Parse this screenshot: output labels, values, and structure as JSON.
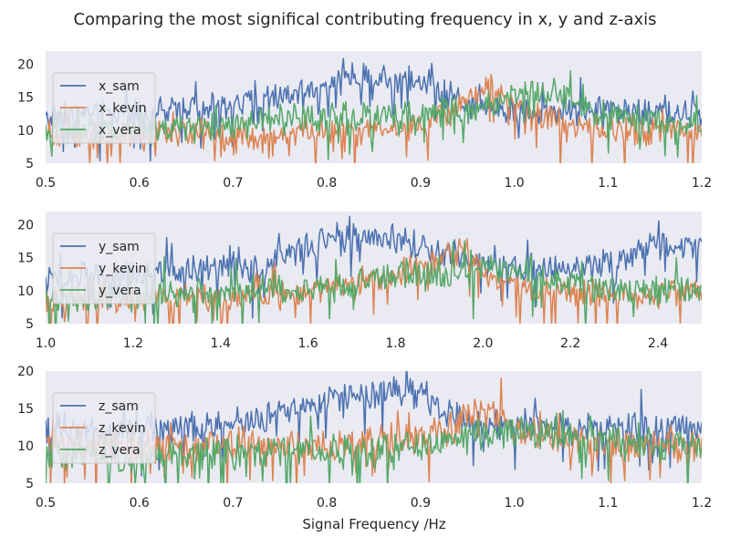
{
  "figure": {
    "title": "Comparing the most significal contributing frequency in x, y and z-axis",
    "xlabel": "Signal Frequency /Hz"
  },
  "colors": {
    "background": "#EAEAF2",
    "series": [
      "#4C72B0",
      "#DD8452",
      "#55A868"
    ],
    "legend_bg": "#EAEAF2",
    "legend_edge": "#CCCCCC"
  },
  "chart_data": [
    {
      "type": "line",
      "xlim": [
        0.5,
        1.2
      ],
      "ylim": [
        5,
        22
      ],
      "xticks": [
        "0.5",
        "0.6",
        "0.7",
        "0.8",
        "0.9",
        "1.0",
        "1.1",
        "1.2"
      ],
      "yticks": [
        "5",
        "10",
        "15",
        "20"
      ],
      "legend_position": "upper-left",
      "grid": false,
      "series": [
        {
          "name": "x_sam",
          "x": [
            0.5,
            0.55,
            0.6,
            0.65,
            0.7,
            0.75,
            0.8,
            0.83,
            0.86,
            0.89,
            0.92,
            0.95,
            1.0,
            1.05,
            1.1,
            1.15,
            1.2
          ],
          "y": [
            12,
            12.5,
            12.5,
            13,
            14,
            15,
            17.5,
            18,
            18,
            18,
            16,
            14,
            13,
            13,
            13,
            12.5,
            12.5
          ]
        },
        {
          "name": "x_kevin",
          "x": [
            0.5,
            0.55,
            0.6,
            0.65,
            0.7,
            0.75,
            0.8,
            0.85,
            0.9,
            0.93,
            0.96,
            0.98,
            1.0,
            1.05,
            1.1,
            1.15,
            1.2
          ],
          "y": [
            9.5,
            9.5,
            9,
            9.5,
            9,
            9.5,
            9.5,
            10,
            11,
            12.5,
            15,
            16.5,
            14,
            11,
            10,
            10,
            10
          ]
        },
        {
          "name": "x_vera",
          "x": [
            0.5,
            0.55,
            0.6,
            0.65,
            0.7,
            0.75,
            0.8,
            0.85,
            0.9,
            0.95,
            0.98,
            1.0,
            1.03,
            1.06,
            1.1,
            1.15,
            1.2
          ],
          "y": [
            9.5,
            10,
            10,
            10,
            11,
            11.5,
            12,
            12.5,
            12.5,
            13,
            14,
            15,
            15.5,
            14.5,
            12,
            11.5,
            11
          ]
        }
      ]
    },
    {
      "type": "line",
      "xlim": [
        1.0,
        2.5
      ],
      "ylim": [
        5,
        22
      ],
      "xticks": [
        "1.0",
        "1.2",
        "1.4",
        "1.6",
        "1.8",
        "2.0",
        "2.2",
        "2.4"
      ],
      "yticks": [
        "5",
        "10",
        "15",
        "20"
      ],
      "legend_position": "upper-left",
      "grid": false,
      "series": [
        {
          "name": "y_sam",
          "x": [
            1.0,
            1.1,
            1.2,
            1.3,
            1.4,
            1.5,
            1.6,
            1.7,
            1.8,
            1.9,
            2.0,
            2.1,
            2.2,
            2.3,
            2.4,
            2.5
          ],
          "y": [
            12,
            12,
            12.5,
            13,
            13.5,
            14,
            17,
            18,
            18,
            15.5,
            14,
            13.5,
            13.5,
            14.5,
            16.5,
            17
          ]
        },
        {
          "name": "y_kevin",
          "x": [
            1.0,
            1.1,
            1.2,
            1.3,
            1.4,
            1.5,
            1.6,
            1.7,
            1.8,
            1.85,
            1.9,
            1.95,
            2.0,
            2.1,
            2.2,
            2.3,
            2.4,
            2.5
          ],
          "y": [
            9,
            8.5,
            9,
            9,
            9,
            9.5,
            10,
            11,
            12.5,
            13.5,
            15,
            16,
            13,
            10,
            9.5,
            9.5,
            9.5,
            9.5
          ]
        },
        {
          "name": "y_vera",
          "x": [
            1.0,
            1.1,
            1.2,
            1.3,
            1.4,
            1.5,
            1.6,
            1.7,
            1.8,
            1.9,
            2.0,
            2.1,
            2.2,
            2.3,
            2.4,
            2.5
          ],
          "y": [
            9,
            9,
            9.5,
            9.5,
            10,
            10,
            10,
            11,
            12.5,
            12.5,
            13.5,
            13,
            11,
            10,
            10,
            10
          ]
        }
      ]
    },
    {
      "type": "line",
      "xlim": [
        0.5,
        1.2
      ],
      "ylim": [
        5,
        20
      ],
      "xticks": [
        "0.5",
        "0.6",
        "0.7",
        "0.8",
        "0.9",
        "1.0",
        "1.1",
        "1.2"
      ],
      "yticks": [
        "5",
        "10",
        "15",
        "20"
      ],
      "legend_position": "upper-left",
      "grid": false,
      "series": [
        {
          "name": "z_sam",
          "x": [
            0.5,
            0.55,
            0.6,
            0.65,
            0.7,
            0.75,
            0.8,
            0.83,
            0.86,
            0.89,
            0.92,
            0.95,
            1.0,
            1.05,
            1.1,
            1.15,
            1.2
          ],
          "y": [
            12,
            12,
            12,
            12.5,
            13,
            14,
            16,
            17,
            17,
            17,
            15,
            13,
            13,
            12.5,
            12.5,
            12.5,
            12.5
          ]
        },
        {
          "name": "z_kevin",
          "x": [
            0.5,
            0.55,
            0.6,
            0.65,
            0.7,
            0.75,
            0.8,
            0.85,
            0.9,
            0.93,
            0.96,
            0.98,
            1.0,
            1.05,
            1.1,
            1.15,
            1.2
          ],
          "y": [
            10,
            10,
            10,
            10,
            10,
            10,
            10,
            10.5,
            11,
            12,
            15,
            14,
            12,
            10.5,
            10,
            10,
            10
          ]
        },
        {
          "name": "z_vera",
          "x": [
            0.5,
            0.55,
            0.6,
            0.65,
            0.7,
            0.75,
            0.8,
            0.85,
            0.9,
            0.95,
            1.0,
            1.05,
            1.1,
            1.15,
            1.2
          ],
          "y": [
            9,
            9,
            8.5,
            9,
            9,
            9.5,
            9.5,
            9.5,
            10,
            11,
            12,
            11.5,
            11,
            10,
            10
          ]
        }
      ]
    }
  ]
}
